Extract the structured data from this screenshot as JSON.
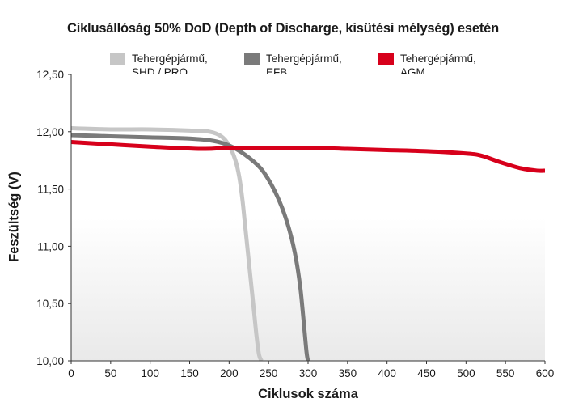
{
  "chart_data": {
    "type": "line",
    "title": "Ciklusállóság 50% DoD (Depth of Discharge, kisütési mélység) esetén",
    "xlabel": "Ciklusok száma",
    "ylabel": "Feszültség (V)",
    "xlim": [
      0,
      600
    ],
    "ylim": [
      10.0,
      12.5
    ],
    "x_ticks": [
      "0",
      "50",
      "100",
      "150",
      "200",
      "250",
      "300",
      "350",
      "400",
      "450",
      "500",
      "550",
      "600"
    ],
    "y_ticks": [
      "10,00",
      "10,50",
      "11,00",
      "11,50",
      "12,00",
      "12,50"
    ],
    "grid": false,
    "legend_position": "top",
    "series": [
      {
        "name": "Tehergépjármű,\nSHD / PRO",
        "color": "#c6c6c6",
        "x": [
          0,
          50,
          100,
          150,
          175,
          190,
          200,
          208,
          213,
          217,
          220,
          223,
          226,
          229,
          232,
          235,
          238,
          241
        ],
        "y": [
          12.03,
          12.02,
          12.02,
          12.01,
          12.0,
          11.96,
          11.88,
          11.75,
          11.6,
          11.4,
          11.2,
          11.0,
          10.8,
          10.6,
          10.4,
          10.2,
          10.05,
          10.0
        ]
      },
      {
        "name": "Tehergépjármű,\nEFB",
        "color": "#7a7a7a",
        "x": [
          0,
          50,
          100,
          150,
          180,
          200,
          220,
          240,
          255,
          268,
          278,
          285,
          290,
          293,
          295,
          297,
          298,
          299,
          300
        ],
        "y": [
          11.97,
          11.96,
          11.95,
          11.94,
          11.92,
          11.88,
          11.8,
          11.68,
          11.52,
          11.32,
          11.1,
          10.88,
          10.65,
          10.45,
          10.3,
          10.15,
          10.08,
          10.03,
          10.0
        ]
      },
      {
        "name": "Tehergépjármű,\nAGM",
        "color": "#d7001b",
        "x": [
          0,
          50,
          100,
          165,
          200,
          250,
          300,
          350,
          400,
          450,
          500,
          520,
          545,
          570,
          590,
          600
        ],
        "y": [
          11.91,
          11.89,
          11.87,
          11.85,
          11.86,
          11.86,
          11.86,
          11.85,
          11.84,
          11.83,
          11.81,
          11.79,
          11.73,
          11.68,
          11.66,
          11.66
        ]
      }
    ]
  }
}
